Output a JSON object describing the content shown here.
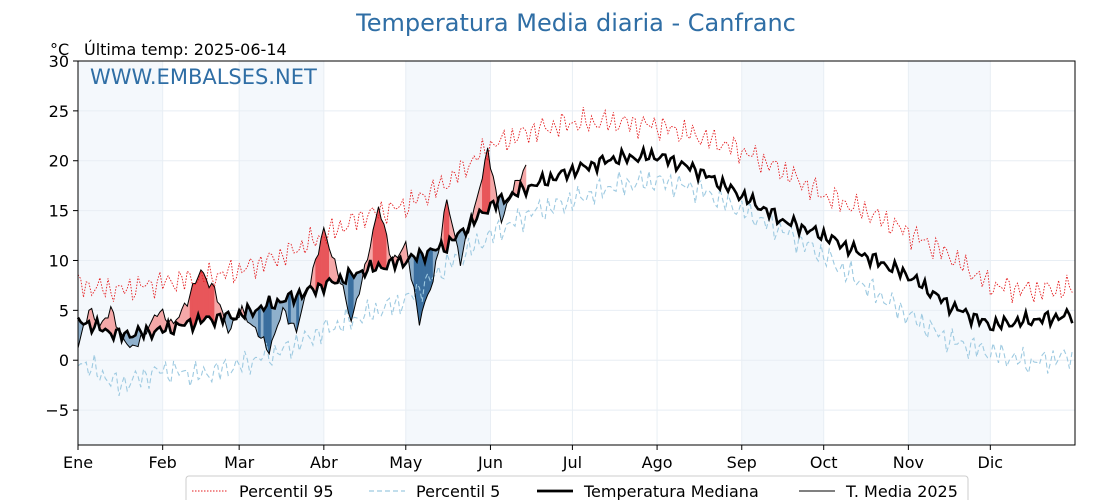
{
  "chart_data": {
    "type": "line",
    "title": "Temperatura Media diaria - Canfranc",
    "unit": "°C",
    "subtitle": "Última temp: 2025-06-14",
    "watermark": "WWW.EMBALSES.NET",
    "ylim": [
      -8.5,
      30
    ],
    "yticks": [
      "30",
      "25",
      "20",
      "15",
      "10",
      "5",
      "0",
      "−5"
    ],
    "ytick_values": [
      30,
      25,
      20,
      15,
      10,
      5,
      0,
      -5
    ],
    "months": [
      "Ene",
      "Feb",
      "Mar",
      "Abr",
      "May",
      "Jun",
      "Jul",
      "Ago",
      "Sep",
      "Oct",
      "Nov",
      "Dic"
    ],
    "month_start_days": [
      0,
      31,
      59,
      90,
      120,
      151,
      181,
      212,
      243,
      273,
      304,
      334
    ],
    "days_in_year": 365,
    "shaded_months": [
      "Ene",
      "Mar",
      "May",
      "Sep",
      "Nov"
    ],
    "grid": true,
    "legend_position": "bottom",
    "series": [
      {
        "name": "Percentil 95",
        "style": "dotted",
        "color": "#e41a1c",
        "knots_day": [
          0,
          15,
          31,
          45,
          59,
          75,
          90,
          105,
          120,
          135,
          151,
          166,
          181,
          196,
          212,
          227,
          243,
          258,
          273,
          288,
          304,
          319,
          334,
          349,
          364
        ],
        "knots_value": [
          7.5,
          7.0,
          7.8,
          8.2,
          9.0,
          10.5,
          12.5,
          14.5,
          15.5,
          17.8,
          21.5,
          23.0,
          23.8,
          23.9,
          23.5,
          22.5,
          21.0,
          19.0,
          16.5,
          15.0,
          12.8,
          10.5,
          7.5,
          7.0,
          7.2
        ]
      },
      {
        "name": "Percentil 5",
        "style": "dashed",
        "color": "#9ecae1",
        "knots_day": [
          0,
          15,
          31,
          45,
          59,
          75,
          90,
          105,
          120,
          135,
          151,
          166,
          181,
          196,
          212,
          227,
          243,
          258,
          273,
          288,
          304,
          319,
          334,
          349,
          364
        ],
        "knots_value": [
          0.0,
          -2.5,
          -1.0,
          -1.5,
          -0.5,
          1.0,
          3.0,
          4.5,
          6.0,
          9.5,
          12.5,
          14.8,
          16.0,
          17.5,
          18.0,
          17.2,
          15.0,
          13.0,
          10.5,
          7.5,
          4.5,
          2.0,
          0.8,
          -0.3,
          0.5
        ]
      },
      {
        "name": "Temperatura Mediana",
        "style": "thick",
        "color": "#000000",
        "knots_day": [
          0,
          15,
          31,
          45,
          59,
          75,
          90,
          105,
          120,
          135,
          151,
          166,
          181,
          196,
          212,
          227,
          243,
          258,
          273,
          288,
          304,
          319,
          334,
          349,
          364
        ],
        "knots_value": [
          4.0,
          2.5,
          3.0,
          4.0,
          4.5,
          6.0,
          7.5,
          9.0,
          10.0,
          11.5,
          15.5,
          17.5,
          19.0,
          20.2,
          20.5,
          19.0,
          16.5,
          14.0,
          12.5,
          10.5,
          8.5,
          5.5,
          3.5,
          4.0,
          4.5
        ]
      },
      {
        "name": "T. Media 2025",
        "style": "thin",
        "color": "#000000",
        "last_day": 164,
        "knots_day": [
          0,
          4,
          8,
          12,
          16,
          20,
          25,
          30,
          35,
          40,
          45,
          50,
          55,
          60,
          65,
          70,
          75,
          80,
          85,
          90,
          95,
          100,
          105,
          110,
          115,
          120,
          125,
          130,
          135,
          140,
          145,
          150,
          155,
          160,
          164
        ],
        "knots_value": [
          1.5,
          5.0,
          3.5,
          5.0,
          2.5,
          1.0,
          3.0,
          5.0,
          3.5,
          6.0,
          9.0,
          7.0,
          3.0,
          5.0,
          3.0,
          1.0,
          5.0,
          3.0,
          8.0,
          13.0,
          9.0,
          4.0,
          9.0,
          15.5,
          10.0,
          11.5,
          4.0,
          8.0,
          16.0,
          10.0,
          15.0,
          21.0,
          14.0,
          17.5,
          19.5
        ]
      }
    ]
  }
}
